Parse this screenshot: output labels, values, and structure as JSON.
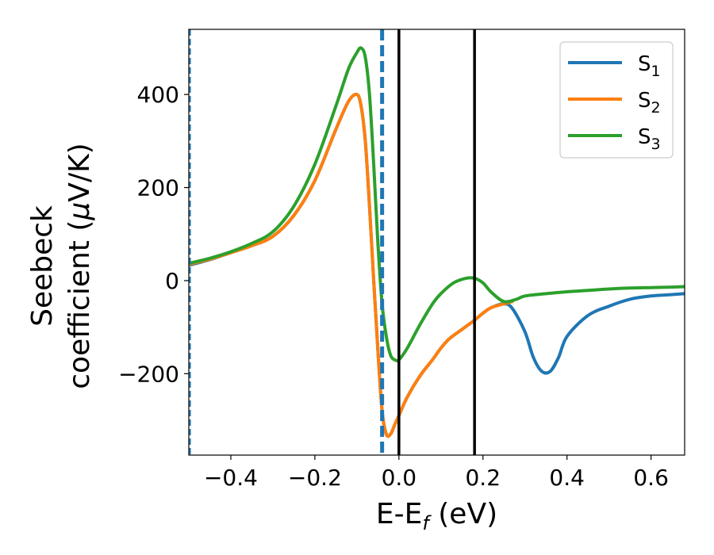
{
  "chart_data": {
    "type": "line",
    "xlabel": "E-E",
    "xlabel_sub": "f",
    "xlabel_unit": " (eV)",
    "ylabel_line1": "Seebeck",
    "ylabel_line2_text": "coefficient  (",
    "ylabel_line2_mu": "μ",
    "ylabel_line2_unit": "V/K)",
    "xlim": [
      -0.5,
      0.68
    ],
    "ylim": [
      -375,
      540
    ],
    "x_ticks": [
      -0.4,
      -0.2,
      0.0,
      0.2,
      0.4,
      0.6
    ],
    "x_tick_labels": [
      "−0.4",
      "−0.2",
      "0.0",
      "0.2",
      "0.4",
      "0.6"
    ],
    "y_ticks": [
      -200,
      0,
      200,
      400
    ],
    "y_tick_labels": [
      "−200",
      "0",
      "200",
      "400"
    ],
    "legend_position": "top-right",
    "grid": false,
    "vlines": [
      {
        "x": -0.497,
        "color": "#1f77b4",
        "style": "dashed",
        "width": 2
      },
      {
        "x": -0.04,
        "color": "#1f77b4",
        "style": "dashed",
        "width": 5
      },
      {
        "x": 0.0,
        "color": "#000000",
        "style": "solid",
        "width": 3.5
      },
      {
        "x": 0.18,
        "color": "#000000",
        "style": "solid",
        "width": 3.5
      }
    ],
    "series": [
      {
        "name": "S",
        "sub": "1",
        "color": "#1f77b4",
        "x": [
          -0.5,
          -0.45,
          -0.4,
          -0.35,
          -0.3,
          -0.25,
          -0.2,
          -0.15,
          -0.12,
          -0.1,
          -0.09,
          -0.08,
          -0.07,
          -0.06,
          -0.05,
          -0.04,
          -0.03,
          -0.02,
          -0.01,
          0.0,
          0.02,
          0.05,
          0.08,
          0.1,
          0.12,
          0.15,
          0.18,
          0.2,
          0.22,
          0.25,
          0.27,
          0.3,
          0.32,
          0.34,
          0.36,
          0.38,
          0.4,
          0.45,
          0.5,
          0.55,
          0.6,
          0.65,
          0.68
        ],
        "y": [
          33,
          45,
          60,
          75,
          95,
          140,
          215,
          325,
          385,
          400,
          375,
          300,
          160,
          0,
          -150,
          -280,
          -330,
          -330,
          -310,
          -290,
          -250,
          -205,
          -170,
          -145,
          -125,
          -105,
          -85,
          -70,
          -58,
          -50,
          -60,
          -110,
          -165,
          -195,
          -195,
          -165,
          -120,
          -75,
          -55,
          -40,
          -33,
          -30,
          -28
        ]
      },
      {
        "name": "S",
        "sub": "2",
        "color": "#ff7f0e",
        "x": [
          -0.5,
          -0.45,
          -0.4,
          -0.35,
          -0.3,
          -0.25,
          -0.2,
          -0.15,
          -0.12,
          -0.1,
          -0.09,
          -0.08,
          -0.07,
          -0.06,
          -0.05,
          -0.04,
          -0.03,
          -0.02,
          -0.01,
          0.0,
          0.02,
          0.05,
          0.08,
          0.1,
          0.12,
          0.15,
          0.18,
          0.2,
          0.22,
          0.25,
          0.27
        ],
        "y": [
          35,
          46,
          60,
          75,
          95,
          140,
          215,
          325,
          385,
          400,
          375,
          300,
          160,
          0,
          -150,
          -280,
          -330,
          -330,
          -310,
          -290,
          -250,
          -205,
          -170,
          -145,
          -125,
          -105,
          -85,
          -70,
          -58,
          -50,
          -45
        ]
      },
      {
        "name": "S",
        "sub": "3",
        "color": "#2ca02c",
        "x": [
          -0.5,
          -0.45,
          -0.4,
          -0.35,
          -0.3,
          -0.25,
          -0.2,
          -0.15,
          -0.12,
          -0.1,
          -0.09,
          -0.08,
          -0.07,
          -0.06,
          -0.05,
          -0.04,
          -0.03,
          -0.02,
          -0.01,
          0.0,
          0.02,
          0.05,
          0.08,
          0.1,
          0.13,
          0.16,
          0.18,
          0.2,
          0.22,
          0.25,
          0.28,
          0.3,
          0.35,
          0.4,
          0.45,
          0.5,
          0.55,
          0.6,
          0.65,
          0.68
        ],
        "y": [
          37,
          48,
          62,
          80,
          105,
          160,
          250,
          375,
          455,
          490,
          500,
          480,
          400,
          250,
          80,
          -50,
          -120,
          -160,
          -170,
          -170,
          -145,
          -95,
          -50,
          -28,
          -5,
          5,
          5,
          -5,
          -25,
          -45,
          -40,
          -33,
          -28,
          -24,
          -21,
          -18,
          -16,
          -15,
          -14,
          -13
        ]
      }
    ]
  }
}
